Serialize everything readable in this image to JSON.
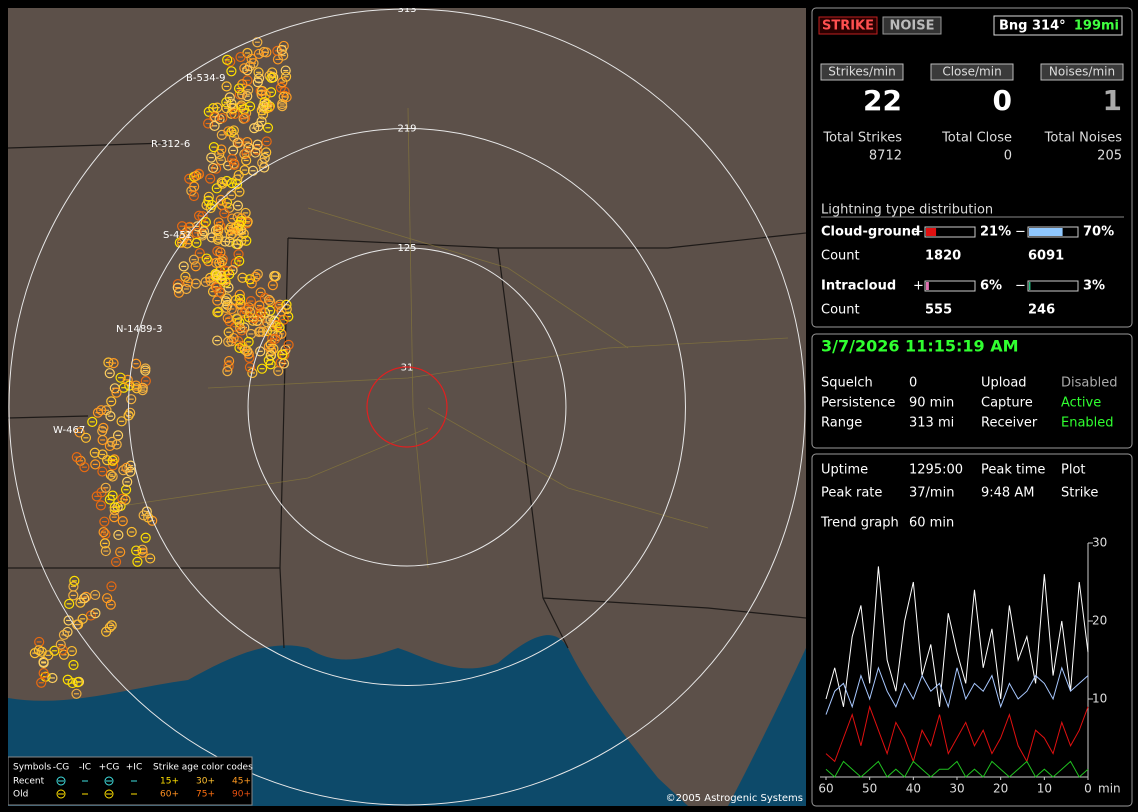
{
  "map": {
    "range_rings": [
      313,
      219,
      125,
      31
    ],
    "storms": [
      "B-534-9",
      "R-312-6",
      "S-451",
      "N-1489-3",
      "W-467"
    ],
    "legend": {
      "symbols": "Symbols",
      "types": [
        "-CG",
        "-IC",
        "+CG",
        "+IC"
      ],
      "age_title": "Strike age color codes",
      "rows": [
        "Recent",
        "Old"
      ],
      "ages": [
        [
          "15+",
          "30+",
          "45+"
        ],
        [
          "60+",
          "75+",
          "90+"
        ]
      ]
    },
    "copyright": "©2005 Astrogenic Systems"
  },
  "header": {
    "strike": "STRIKE",
    "noise": "NOISE",
    "bearing": "Bng 314°",
    "distance": "199mi"
  },
  "rates": {
    "labels": [
      "Strikes/min",
      "Close/min",
      "Noises/min"
    ],
    "values": [
      22,
      0,
      1
    ],
    "total_labels": [
      "Total Strikes",
      "Total Close",
      "Total Noises"
    ],
    "totals": [
      8712,
      0,
      205
    ]
  },
  "distribution": {
    "title": "Lightning type distribution",
    "rows": [
      {
        "label": "Cloud-ground",
        "plus": "+",
        "minus": "−",
        "pos": {
          "value": 21,
          "label": "21%"
        },
        "neg": {
          "value": 70,
          "label": "70%"
        },
        "count_label": "Count",
        "counts": [
          1820,
          6091
        ]
      },
      {
        "label": "Intracloud",
        "plus": "+",
        "minus": "−",
        "pos": {
          "value": 6,
          "label": "6%"
        },
        "neg": {
          "value": 3,
          "label": "3%"
        },
        "count_label": "Count",
        "counts": [
          555,
          246
        ]
      }
    ]
  },
  "datetime": "3/7/2026 11:15:19 AM",
  "status": [
    [
      "Squelch",
      "0",
      "Upload",
      "Disabled"
    ],
    [
      "Persistence",
      "90 min",
      "Capture",
      "Active"
    ],
    [
      "Range",
      "313 mi",
      "Receiver",
      "Enabled"
    ]
  ],
  "stats": [
    [
      "Uptime",
      "1295:00",
      "Peak time",
      "Plot"
    ],
    [
      "Peak rate",
      "37/min",
      "9:48 AM",
      "Strike"
    ]
  ],
  "trend": {
    "label": "Trend graph",
    "period": "60 min",
    "x_label": "min",
    "xlim": [
      60,
      0
    ],
    "ylim": [
      0,
      30
    ],
    "xticks": [
      60,
      50,
      40,
      30,
      20,
      10,
      0
    ],
    "yticks": [
      10,
      20,
      30
    ],
    "x": [
      60,
      58,
      56,
      54,
      52,
      50,
      48,
      46,
      44,
      42,
      40,
      38,
      36,
      34,
      32,
      30,
      28,
      26,
      24,
      22,
      20,
      18,
      16,
      14,
      12,
      10,
      8,
      6,
      4,
      2,
      0
    ],
    "series": [
      {
        "color": "#ffffff",
        "values": [
          10,
          14,
          9,
          18,
          22,
          12,
          27,
          15,
          11,
          20,
          25,
          13,
          17,
          9,
          21,
          16,
          12,
          24,
          14,
          19,
          10,
          22,
          15,
          18,
          12,
          26,
          13,
          20,
          11,
          25,
          16
        ]
      },
      {
        "color": "#a8c8ff",
        "values": [
          8,
          11,
          12,
          9,
          13,
          10,
          14,
          11,
          9,
          12,
          10,
          13,
          11,
          12,
          9,
          14,
          10,
          12,
          11,
          13,
          9,
          12,
          10,
          11,
          13,
          12,
          10,
          14,
          11,
          12,
          13
        ]
      },
      {
        "color": "#e01010",
        "values": [
          3,
          2,
          5,
          8,
          4,
          9,
          6,
          3,
          7,
          5,
          2,
          6,
          4,
          8,
          3,
          5,
          7,
          4,
          6,
          3,
          5,
          8,
          4,
          2,
          6,
          5,
          3,
          7,
          4,
          6,
          9
        ]
      },
      {
        "color": "#20c020",
        "values": [
          1,
          0,
          2,
          1,
          0,
          1,
          2,
          0,
          1,
          0,
          2,
          1,
          0,
          1,
          1,
          2,
          0,
          1,
          0,
          2,
          1,
          0,
          1,
          2,
          0,
          1,
          0,
          1,
          2,
          0,
          1
        ]
      }
    ]
  }
}
